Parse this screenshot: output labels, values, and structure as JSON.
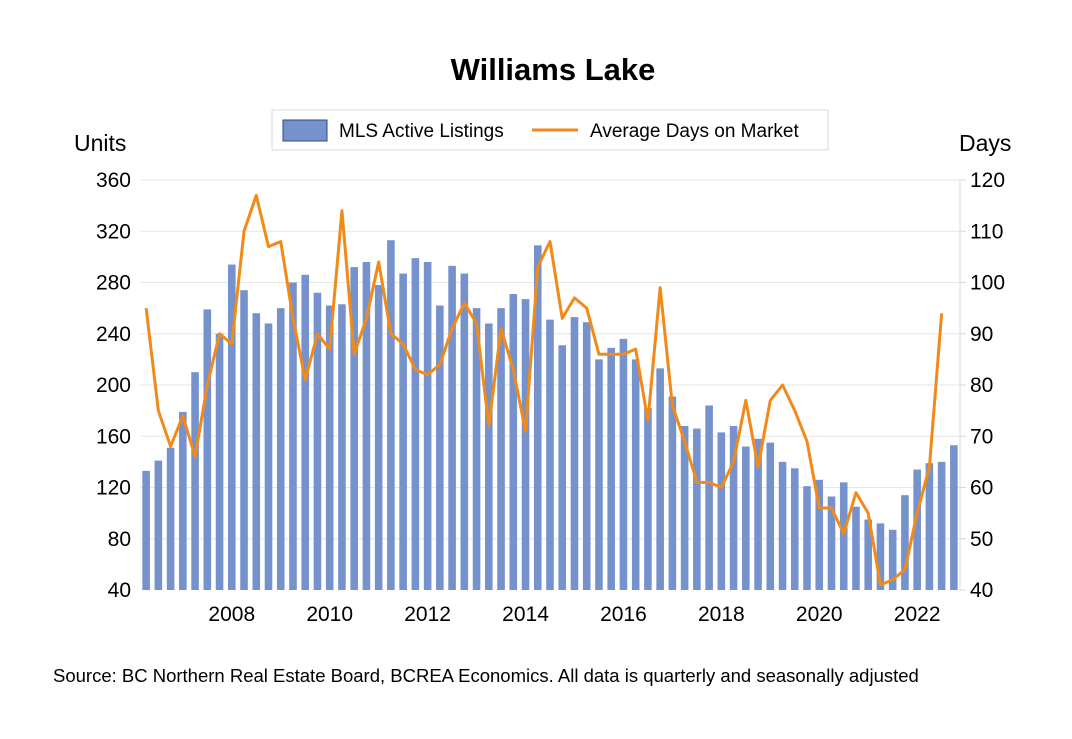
{
  "chart_data": {
    "type": "bar+line",
    "title": "Williams Lake",
    "left_axis_label": "Units",
    "right_axis_label": "Days",
    "left_ylim": [
      40,
      360
    ],
    "left_ticks": [
      40,
      80,
      120,
      160,
      200,
      240,
      280,
      320,
      360
    ],
    "right_ylim": [
      40,
      120
    ],
    "right_ticks": [
      40,
      50,
      60,
      70,
      80,
      90,
      100,
      110,
      120
    ],
    "x_tick_labels": [
      "2008",
      "2010",
      "2012",
      "2014",
      "2016",
      "2018",
      "2020",
      "2022"
    ],
    "first_period": "2006 Q4",
    "frequency": "quarterly",
    "grid": true,
    "legend_position": "top",
    "source": "Source: BC Northern Real Estate Board, BCREA Economics. All data is quarterly and seasonally adjusted",
    "series": [
      {
        "name": "MLS Active Listings",
        "type": "bar",
        "axis": "left",
        "color": "#7592cc",
        "values": [
          133,
          141,
          151,
          179,
          210,
          259,
          240,
          294,
          274,
          256,
          248,
          260,
          280,
          286,
          272,
          262,
          263,
          292,
          296,
          278,
          313,
          287,
          299,
          296,
          262,
          293,
          287,
          260,
          248,
          260,
          271,
          267,
          309,
          251,
          231,
          253,
          249,
          220,
          229,
          236,
          220,
          182,
          213,
          191,
          168,
          166,
          184,
          163,
          168,
          152,
          158,
          155,
          140,
          135,
          121,
          126,
          113,
          124,
          105,
          95,
          92,
          87,
          114,
          134,
          139,
          140,
          153
        ]
      },
      {
        "name": "Average Days on Market",
        "type": "line",
        "axis": "right",
        "color": "#f28a1a",
        "values": [
          95,
          75,
          68,
          74,
          66,
          80,
          90,
          88,
          110,
          117,
          107,
          108,
          93,
          81,
          90,
          87,
          114,
          86,
          93,
          104,
          90,
          88,
          83,
          82,
          84,
          91,
          96,
          92,
          72,
          91,
          83,
          71,
          103,
          108,
          93,
          97,
          95,
          86,
          86,
          86,
          87,
          73,
          99,
          76,
          69,
          61,
          61,
          60,
          65,
          77,
          64,
          77,
          80,
          75,
          69,
          56,
          56,
          51,
          59,
          55,
          41,
          42,
          44,
          55,
          64,
          94
        ]
      }
    ]
  }
}
